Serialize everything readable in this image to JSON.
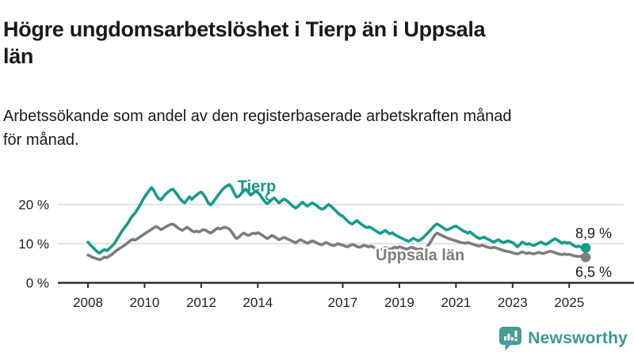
{
  "header": {
    "title_lines": [
      "Högre ungdomsarbetslöshet i Tierp än i Uppsala",
      "län"
    ],
    "subtitle_lines": [
      "Arbetssökande som andel av den registerbaserade arbetskraften månad",
      "för månad."
    ]
  },
  "chart_data": {
    "type": "line",
    "frequency": "monthly",
    "start": "2008-01",
    "end": "2025-08",
    "unit": "%",
    "ylim": [
      0,
      27
    ],
    "grid": "horizontal",
    "yticks": [
      {
        "value": 0,
        "label": "0 %"
      },
      {
        "value": 10,
        "label": "10 %"
      },
      {
        "value": 20,
        "label": "20 %"
      }
    ],
    "xticks": [
      {
        "year": 2008,
        "label": "2008"
      },
      {
        "year": 2010,
        "label": "2010"
      },
      {
        "year": 2012,
        "label": "2012"
      },
      {
        "year": 2014,
        "label": "2014"
      },
      {
        "year": 2017,
        "label": "2017"
      },
      {
        "year": 2019,
        "label": "2019"
      },
      {
        "year": 2021,
        "label": "2021"
      },
      {
        "year": 2023,
        "label": "2023"
      },
      {
        "year": 2025,
        "label": "2025"
      }
    ],
    "colors": {
      "tierp": "#159b8d",
      "uppsala": "#7d7d7d",
      "grid": "#d9d9d9",
      "axis": "#2f2f2f",
      "text": "#1a1a1a"
    },
    "series": [
      {
        "name": "Tierp",
        "color_key": "tierp",
        "end_label": "8,9 %",
        "end_value": 8.9,
        "values": [
          10.4,
          9.7,
          9.1,
          8.5,
          7.9,
          7.6,
          8.1,
          8.5,
          8.2,
          8.7,
          9.3,
          9.9,
          10.8,
          11.8,
          12.8,
          13.7,
          14.5,
          15.3,
          16.4,
          17.2,
          17.8,
          18.8,
          19.8,
          20.9,
          21.9,
          22.8,
          23.6,
          24.3,
          23.5,
          22.3,
          21.5,
          21.2,
          22.0,
          22.7,
          23.2,
          23.7,
          23.9,
          23.2,
          22.4,
          21.5,
          20.8,
          20.4,
          21.2,
          22.0,
          21.3,
          21.9,
          22.4,
          22.9,
          23.2,
          22.5,
          21.6,
          20.4,
          19.9,
          20.5,
          21.4,
          22.2,
          23.0,
          23.8,
          24.4,
          24.8,
          25.1,
          24.2,
          22.9,
          21.9,
          22.1,
          22.8,
          23.5,
          23.9,
          23.1,
          22.4,
          22.9,
          23.4,
          23.1,
          22.4,
          21.5,
          20.7,
          20.2,
          20.7,
          21.3,
          21.7,
          21.0,
          20.4,
          20.9,
          21.4,
          21.1,
          20.6,
          20.0,
          19.5,
          19.1,
          19.5,
          20.1,
          20.6,
          20.0,
          19.6,
          20.0,
          20.4,
          20.1,
          19.7,
          19.2,
          18.8,
          19.0,
          19.5,
          20.0,
          19.6,
          19.0,
          18.4,
          17.8,
          17.3,
          17.0,
          16.4,
          15.8,
          15.3,
          15.0,
          15.5,
          15.9,
          15.4,
          14.9,
          14.5,
          14.1,
          14.3,
          14.1,
          13.7,
          13.3,
          12.9,
          12.6,
          13.0,
          13.4,
          12.9,
          12.5,
          12.8,
          12.3,
          12.0,
          11.7,
          11.4,
          11.1,
          10.8,
          10.6,
          11.0,
          11.4,
          11.0,
          10.7,
          11.0,
          11.5,
          12.1,
          12.7,
          13.3,
          14.0,
          14.7,
          15.0,
          14.7,
          14.3,
          13.9,
          13.5,
          13.7,
          14.0,
          14.3,
          14.5,
          14.1,
          13.7,
          13.3,
          13.0,
          12.7,
          13.0,
          12.5,
          12.0,
          11.6,
          11.3,
          11.5,
          11.7,
          11.3,
          11.0,
          10.7,
          10.4,
          10.7,
          11.0,
          10.6,
          10.3,
          10.5,
          10.7,
          10.5,
          10.3,
          9.8,
          9.2,
          9.7,
          10.4,
          10.1,
          9.8,
          10.0,
          9.7,
          9.5,
          9.8,
          10.1,
          10.4,
          10.1,
          9.8,
          10.1,
          10.5,
          10.9,
          11.3,
          10.9,
          10.5,
          10.1,
          10.4,
          10.1,
          10.3,
          9.9,
          9.5,
          9.2,
          9.4,
          9.1,
          8.8,
          8.9
        ]
      },
      {
        "name": "Uppsala län",
        "color_key": "uppsala",
        "end_label": "6,5 %",
        "end_value": 6.5,
        "values": [
          7.1,
          6.8,
          6.5,
          6.3,
          6.1,
          5.9,
          6.2,
          6.6,
          6.4,
          6.8,
          7.2,
          7.7,
          8.2,
          8.6,
          9.0,
          9.4,
          9.8,
          10.3,
          10.8,
          11.1,
          10.9,
          11.3,
          11.7,
          12.1,
          12.5,
          12.9,
          13.3,
          13.7,
          14.1,
          14.4,
          14.0,
          13.6,
          13.9,
          14.3,
          14.6,
          14.9,
          15.0,
          14.6,
          14.1,
          13.7,
          13.4,
          13.8,
          14.2,
          13.8,
          13.3,
          13.0,
          13.2,
          13.0,
          13.3,
          13.6,
          13.4,
          13.0,
          12.7,
          13.1,
          13.6,
          14.0,
          13.7,
          14.0,
          14.2,
          14.0,
          13.7,
          12.9,
          12.0,
          11.3,
          11.7,
          12.3,
          12.7,
          12.4,
          12.1,
          12.4,
          12.7,
          12.5,
          12.8,
          12.5,
          12.1,
          11.7,
          11.3,
          11.7,
          12.1,
          11.8,
          11.4,
          11.0,
          11.3,
          11.6,
          11.4,
          11.1,
          10.8,
          10.5,
          10.2,
          10.6,
          11.0,
          10.7,
          10.4,
          10.1,
          10.4,
          10.7,
          10.5,
          10.2,
          9.9,
          9.7,
          10.0,
          10.3,
          10.0,
          9.7,
          9.5,
          9.7,
          10.0,
          9.8,
          9.6,
          9.4,
          9.2,
          9.5,
          9.8,
          9.6,
          9.3,
          9.1,
          9.3,
          9.6,
          9.4,
          9.2,
          9.4,
          9.1,
          8.8,
          8.6,
          8.4,
          8.7,
          9.0,
          8.8,
          8.5,
          8.8,
          9.1,
          8.9,
          9.2,
          9.0,
          8.8,
          8.6,
          8.8,
          9.1,
          8.9,
          8.7,
          8.5,
          8.7,
          8.5,
          8.8,
          9.4,
          10.2,
          11.2,
          12.2,
          12.7,
          12.4,
          12.1,
          11.8,
          11.5,
          11.3,
          11.1,
          10.9,
          10.7,
          10.5,
          10.3,
          10.2,
          10.1,
          10.3,
          10.1,
          9.9,
          9.7,
          9.5,
          9.4,
          9.6,
          9.4,
          9.2,
          9.0,
          8.9,
          9.1,
          8.9,
          8.7,
          8.5,
          8.3,
          8.1,
          8.0,
          7.9,
          7.7,
          7.5,
          7.4,
          7.6,
          7.9,
          7.7,
          7.5,
          7.7,
          7.5,
          7.4,
          7.6,
          7.8,
          7.6,
          7.5,
          7.7,
          7.9,
          8.1,
          7.9,
          7.7,
          7.5,
          7.3,
          7.2,
          7.4,
          7.2,
          7.3,
          7.1,
          6.9,
          6.8,
          6.7,
          6.8,
          6.6,
          6.5
        ]
      }
    ]
  },
  "footer": {
    "brand": "Newsworthy"
  }
}
